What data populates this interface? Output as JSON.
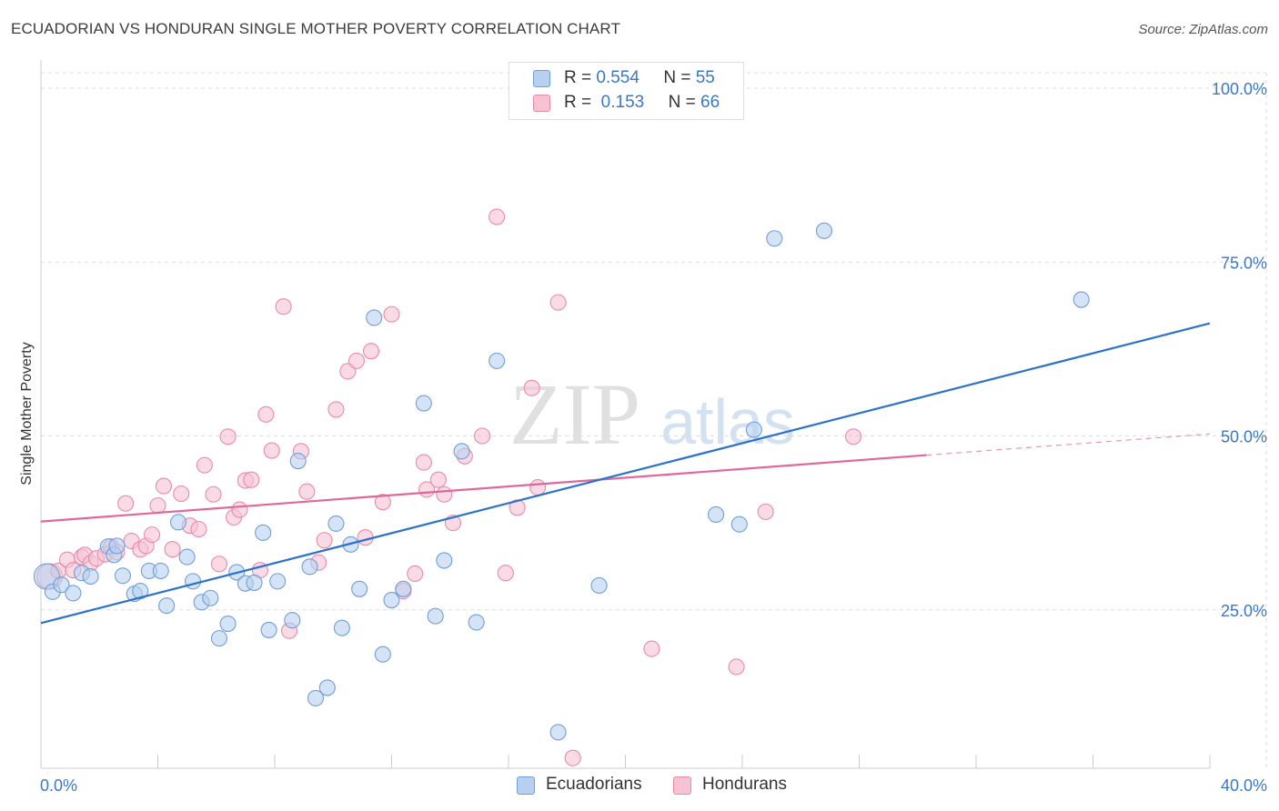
{
  "title": "ECUADORIAN VS HONDURAN SINGLE MOTHER POVERTY CORRELATION CHART",
  "source": "Source: ZipAtlas.com",
  "watermark": {
    "zip": "ZIP",
    "atlas": "atlas"
  },
  "legend_top": [
    {
      "r_label": "R =",
      "r_value": "0.554",
      "n_label": "N =",
      "n_value": "55"
    },
    {
      "r_label": "R =",
      "r_value": "0.153",
      "n_label": "N =",
      "n_value": "66"
    }
  ],
  "legend_bottom": [
    "Ecuadorians",
    "Hondurans"
  ],
  "colors": {
    "blue_fill": "#b8d0ef",
    "blue_stroke": "#6f9fd8",
    "blue_line": "#2a72cc",
    "pink_fill": "#f6c3d3",
    "pink_stroke": "#e98aa8",
    "pink_line": "#e0679a",
    "tick_label": "#3a78c8",
    "grid": "#dddddd"
  },
  "chart_data": {
    "type": "scatter",
    "title": "ECUADORIAN VS HONDURAN SINGLE MOTHER POVERTY CORRELATION CHART",
    "xlabel": "",
    "ylabel": "Single Mother Poverty",
    "xlim": [
      0,
      40
    ],
    "ylim": [
      0,
      100
    ],
    "x_tick_labels": [
      {
        "value": 0,
        "label": "0.0%"
      },
      {
        "value": 40,
        "label": "40.0%"
      }
    ],
    "y_tick_labels": [
      {
        "value": 25,
        "label": "25.0%"
      },
      {
        "value": 50,
        "label": "50.0%"
      },
      {
        "value": 75,
        "label": "75.0%"
      },
      {
        "value": 100,
        "label": "100.0%"
      }
    ],
    "series": [
      {
        "name": "Ecuadorians",
        "R": 0.554,
        "N": 55,
        "trend": {
          "x0": 0,
          "y0": 23.1,
          "x1": 40,
          "y1": 66.2,
          "solid_until": 40
        },
        "points": [
          [
            0.2,
            29.8
          ],
          [
            0.4,
            27.6
          ],
          [
            0.7,
            28.6
          ],
          [
            1.1,
            27.4
          ],
          [
            1.4,
            30.3
          ],
          [
            1.7,
            29.8
          ],
          [
            2.3,
            34.1
          ],
          [
            2.5,
            32.9
          ],
          [
            2.6,
            34.2
          ],
          [
            2.8,
            29.9
          ],
          [
            3.2,
            27.3
          ],
          [
            3.4,
            27.7
          ],
          [
            3.7,
            30.6
          ],
          [
            4.1,
            30.6
          ],
          [
            4.3,
            25.6
          ],
          [
            4.7,
            37.6
          ],
          [
            5.0,
            32.6
          ],
          [
            5.2,
            29.1
          ],
          [
            5.5,
            26.1
          ],
          [
            5.8,
            26.7
          ],
          [
            6.1,
            20.9
          ],
          [
            6.4,
            23.0
          ],
          [
            6.7,
            30.4
          ],
          [
            7.0,
            28.8
          ],
          [
            7.3,
            28.9
          ],
          [
            7.6,
            36.1
          ],
          [
            7.8,
            22.1
          ],
          [
            8.1,
            29.1
          ],
          [
            8.6,
            23.5
          ],
          [
            8.8,
            46.4
          ],
          [
            9.2,
            31.2
          ],
          [
            9.4,
            12.3
          ],
          [
            9.8,
            13.8
          ],
          [
            10.1,
            37.4
          ],
          [
            10.3,
            22.4
          ],
          [
            10.6,
            34.4
          ],
          [
            10.9,
            28.0
          ],
          [
            11.4,
            67.0
          ],
          [
            11.7,
            18.6
          ],
          [
            12.0,
            26.4
          ],
          [
            12.4,
            28.0
          ],
          [
            13.1,
            54.7
          ],
          [
            13.5,
            24.1
          ],
          [
            13.8,
            32.1
          ],
          [
            14.4,
            47.8
          ],
          [
            14.9,
            23.2
          ],
          [
            15.6,
            60.8
          ],
          [
            17.7,
            7.4
          ],
          [
            19.1,
            28.5
          ],
          [
            23.1,
            38.7
          ],
          [
            23.9,
            37.3
          ],
          [
            24.4,
            50.9
          ],
          [
            25.1,
            78.4
          ],
          [
            26.8,
            79.5
          ],
          [
            35.6,
            69.6
          ]
        ]
      },
      {
        "name": "Hondurans",
        "R": 0.153,
        "N": 66,
        "trend": {
          "x0": 0,
          "y0": 37.7,
          "x1": 40,
          "y1": 50.3,
          "solid_until": 30.3
        },
        "points": [
          [
            0.3,
            29.8
          ],
          [
            0.6,
            30.6
          ],
          [
            0.9,
            32.2
          ],
          [
            1.1,
            30.7
          ],
          [
            1.4,
            32.6
          ],
          [
            1.5,
            32.9
          ],
          [
            1.7,
            31.7
          ],
          [
            1.9,
            32.4
          ],
          [
            2.2,
            33.0
          ],
          [
            2.4,
            34.1
          ],
          [
            2.6,
            33.3
          ],
          [
            2.9,
            40.3
          ],
          [
            3.1,
            34.9
          ],
          [
            3.4,
            33.7
          ],
          [
            3.6,
            34.2
          ],
          [
            3.8,
            35.8
          ],
          [
            4.0,
            40.0
          ],
          [
            4.2,
            42.8
          ],
          [
            4.5,
            33.7
          ],
          [
            4.8,
            41.7
          ],
          [
            5.1,
            37.1
          ],
          [
            5.4,
            36.6
          ],
          [
            5.6,
            45.8
          ],
          [
            5.9,
            41.6
          ],
          [
            6.1,
            31.6
          ],
          [
            6.4,
            49.9
          ],
          [
            6.6,
            38.3
          ],
          [
            6.8,
            39.4
          ],
          [
            7.0,
            43.6
          ],
          [
            7.2,
            43.7
          ],
          [
            7.5,
            30.7
          ],
          [
            7.7,
            53.1
          ],
          [
            7.9,
            47.9
          ],
          [
            8.3,
            68.6
          ],
          [
            8.5,
            22.0
          ],
          [
            8.9,
            47.8
          ],
          [
            9.1,
            42.0
          ],
          [
            9.5,
            31.8
          ],
          [
            9.7,
            35.0
          ],
          [
            10.1,
            53.8
          ],
          [
            10.5,
            59.3
          ],
          [
            10.8,
            60.8
          ],
          [
            11.1,
            35.4
          ],
          [
            11.3,
            62.2
          ],
          [
            11.7,
            40.5
          ],
          [
            12.0,
            67.5
          ],
          [
            12.4,
            27.7
          ],
          [
            12.8,
            30.2
          ],
          [
            13.1,
            46.2
          ],
          [
            13.2,
            42.3
          ],
          [
            13.6,
            43.7
          ],
          [
            13.8,
            41.6
          ],
          [
            14.1,
            37.5
          ],
          [
            14.5,
            47.1
          ],
          [
            15.1,
            50.0
          ],
          [
            15.6,
            81.5
          ],
          [
            15.9,
            30.3
          ],
          [
            16.3,
            39.7
          ],
          [
            16.8,
            56.9
          ],
          [
            17.0,
            42.6
          ],
          [
            17.7,
            69.2
          ],
          [
            18.2,
            3.7
          ],
          [
            20.9,
            19.4
          ],
          [
            23.8,
            16.8
          ],
          [
            24.8,
            39.1
          ],
          [
            27.8,
            49.9
          ]
        ]
      }
    ]
  }
}
